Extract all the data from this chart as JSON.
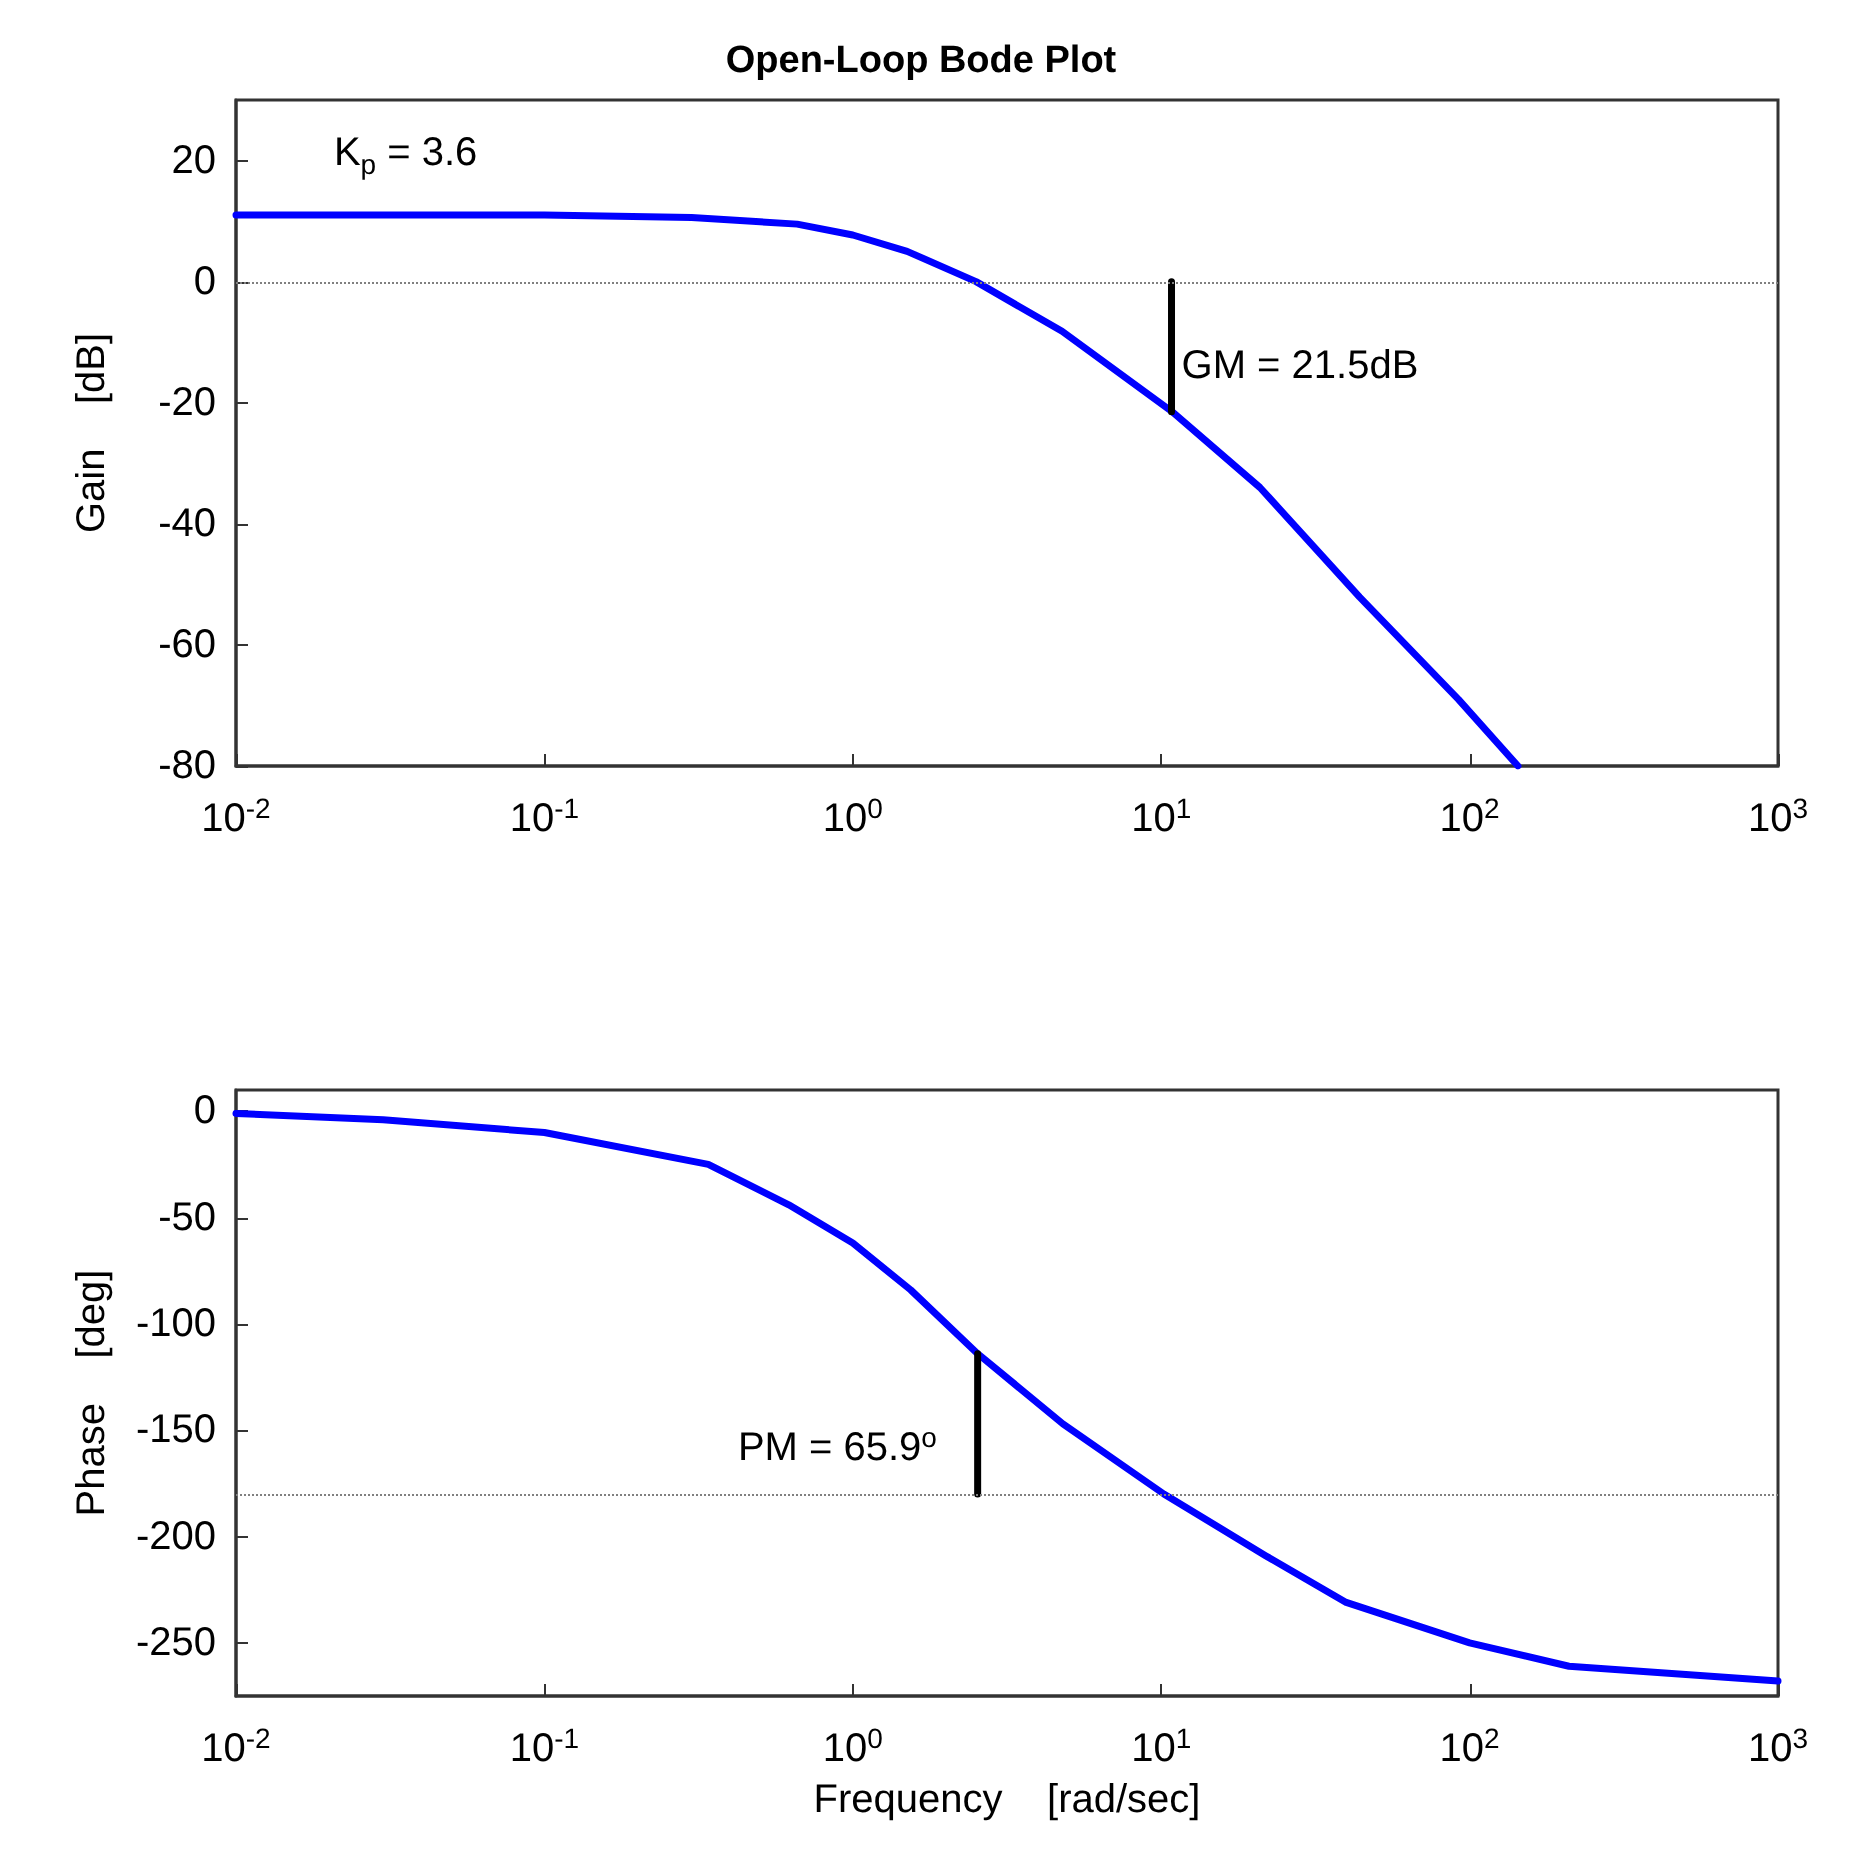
{
  "chart_data": [
    {
      "type": "line",
      "title": "Open-Loop Bode Plot",
      "ylabel": "Gain    [dB]",
      "marker": "none",
      "grid": false,
      "xlim": [
        0.01,
        1000
      ],
      "xticks": [
        {
          "value": 0.01,
          "label": "10$^{-2}$"
        },
        {
          "value": 0.1,
          "label": "10$^{-1}$"
        },
        {
          "value": 1,
          "label": "10$^{0}$"
        },
        {
          "value": 10,
          "label": "10$^{1}$"
        },
        {
          "value": 100,
          "label": "10$^{2}$"
        },
        {
          "value": 1000,
          "label": "10$^{3}$"
        }
      ],
      "ylim": [
        -80,
        30
      ],
      "yticks": [
        -80,
        -60,
        -40,
        -20,
        0,
        20
      ],
      "log": "x",
      "series": [
        {
          "color": "#0000ff",
          "x": [
            0.01,
            0.03,
            0.1,
            0.3,
            0.66,
            1,
            1.5,
            2.51,
            4.77,
            10.8,
            20.9,
            44,
            92,
            143.5
          ],
          "values": [
            11,
            11,
            11,
            10.6,
            9.5,
            7.7,
            5,
            0,
            -8.2,
            -21.4,
            -34,
            -52.1,
            -69,
            -80
          ]
        },
        {
          "color": "#000000",
          "x": [
            10.8,
            10.8
          ],
          "values": [
            0,
            -21.5
          ]
        }
      ],
      "ref_lines": [
        {
          "axis": "y",
          "value": 0,
          "color": "#808080",
          "line_style": "dotted"
        }
      ],
      "annotations": [
        "K$_{p}$ = 3.6",
        "GM = 21.5dB"
      ]
    },
    {
      "type": "line",
      "xlabel": "Frequency    [rad/sec]",
      "ylabel": "Phase    [deg]",
      "marker": "none",
      "grid": false,
      "xlim": [
        0.01,
        1000
      ],
      "xticks": [
        {
          "value": 0.01,
          "label": "10$^{-2}$"
        },
        {
          "value": 0.1,
          "label": "10$^{-1}$"
        },
        {
          "value": 1,
          "label": "10$^{0}$"
        },
        {
          "value": 10,
          "label": "10$^{1}$"
        },
        {
          "value": 100,
          "label": "10$^{2}$"
        },
        {
          "value": 1000,
          "label": "10$^{3}$"
        }
      ],
      "ylim": [
        -275,
        10
      ],
      "yticks": [
        -250,
        -200,
        -150,
        -100,
        -50,
        0
      ],
      "log": "x",
      "series": [
        {
          "color": "#0000ff",
          "x": [
            0.01,
            0.03,
            0.1,
            0.34,
            0.62,
            1,
            1.54,
            2.54,
            4.8,
            10.2,
            21.8,
            39.8,
            100,
            210,
            1000
          ],
          "values": [
            -1,
            -4,
            -10,
            -25,
            -44,
            -62,
            -84,
            -114,
            -147,
            -180,
            -209,
            -231,
            -250,
            -261,
            -268
          ]
        },
        {
          "color": "#000000",
          "x": [
            2.54,
            2.54
          ],
          "values": [
            -180,
            -114
          ]
        }
      ],
      "ref_lines": [
        {
          "axis": "y",
          "value": -180,
          "color": "#808080",
          "line_style": "dotted"
        }
      ],
      "annotations": [
        "PM = 65.9$^{o}$"
      ]
    }
  ]
}
